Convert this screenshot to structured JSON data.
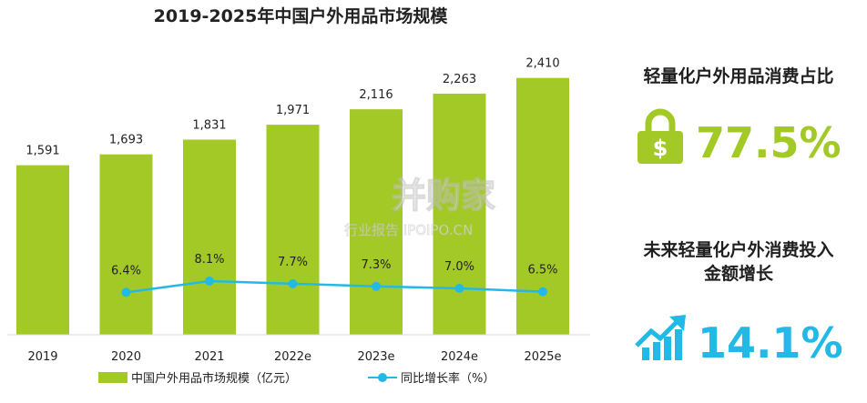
{
  "colors": {
    "bar": "#a3c926",
    "line": "#23b9e6",
    "lime": "#a3c926",
    "cyan": "#23b9e6",
    "text": "#222222"
  },
  "chart_data": {
    "type": "bar",
    "title": "2019-2025年中国户外用品市场规模",
    "categories": [
      "2019",
      "2020",
      "2021",
      "2022e",
      "2023e",
      "2024e",
      "2025e"
    ],
    "series": [
      {
        "name": "中国户外用品市场规模（亿元）",
        "type": "bar",
        "values": [
          1591,
          1693,
          1831,
          1971,
          2116,
          2263,
          2410
        ],
        "labels": [
          "1,591",
          "1,693",
          "1,831",
          "1,971",
          "2,116",
          "2,263",
          "2,410"
        ]
      },
      {
        "name": "同比增长率（%）",
        "type": "line",
        "values": [
          null,
          6.4,
          8.1,
          7.7,
          7.3,
          7.0,
          6.5
        ],
        "labels": [
          "",
          "6.4%",
          "8.1%",
          "7.7%",
          "7.3%",
          "7.0%",
          "6.5%"
        ]
      }
    ],
    "ylim": [
      0,
      2800
    ],
    "ylim_line": [
      0,
      45
    ],
    "grid": false,
    "legend": "bottom"
  },
  "watermark": {
    "brand": "并购家",
    "sub": "行业报告 IPOIPO.CN"
  },
  "panel": {
    "stat1_title": "轻量化户外用品消费占比",
    "stat1_value": "77.5%",
    "stat1_icon": "padlock-dollar-icon",
    "stat2_title_line1": "未来轻量化户外消费投入",
    "stat2_title_line2": "金额增长",
    "stat2_value": "14.1%",
    "stat2_icon": "growth-arrow-icon"
  }
}
